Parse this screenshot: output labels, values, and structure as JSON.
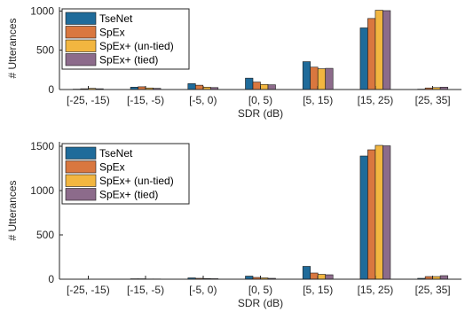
{
  "colors": {
    "series": [
      "#1f6b9a",
      "#d9773f",
      "#f2b640",
      "#8c6b8b"
    ],
    "axis": "#262626",
    "legend_border": "#262626",
    "background": "#ffffff"
  },
  "chart_data": [
    {
      "type": "bar",
      "title": "",
      "xlabel": "SDR (dB)",
      "ylabel": "# Utterances",
      "ylim": [
        0,
        1050
      ],
      "yticks": [
        0,
        500,
        1000
      ],
      "grid": false,
      "legend": "top-left",
      "categories": [
        "[-25, -15)",
        "[-15, -5)",
        "[-5, 0)",
        "[0, 5)",
        "[5, 15)",
        "[15, 25)",
        "[25, 35]"
      ],
      "series": [
        {
          "name": "TseNet",
          "values": [
            5,
            30,
            75,
            145,
            355,
            785,
            5
          ]
        },
        {
          "name": "SpEx",
          "values": [
            10,
            35,
            55,
            95,
            285,
            905,
            20
          ]
        },
        {
          "name": "SpEx+ (un-tied)",
          "values": [
            15,
            20,
            30,
            65,
            265,
            1010,
            25
          ]
        },
        {
          "name": "SpEx+ (tied)",
          "values": [
            10,
            15,
            25,
            60,
            270,
            1005,
            30
          ]
        }
      ]
    },
    {
      "type": "bar",
      "title": "",
      "xlabel": "SDR (dB)",
      "ylabel": "# Utterances",
      "ylim": [
        0,
        1550
      ],
      "yticks": [
        0,
        500,
        1000,
        1500
      ],
      "grid": false,
      "legend": "top-left",
      "categories": [
        "[-25, -15)",
        "[-15, -5)",
        "[-5, 0)",
        "[0, 5)",
        "[5, 15)",
        "[15, 25)",
        "[25, 35]"
      ],
      "series": [
        {
          "name": "TseNet",
          "values": [
            2,
            5,
            15,
            35,
            145,
            1390,
            10
          ]
        },
        {
          "name": "SpEx",
          "values": [
            2,
            5,
            10,
            20,
            70,
            1460,
            30
          ]
        },
        {
          "name": "SpEx+ (un-tied)",
          "values": [
            2,
            3,
            8,
            15,
            55,
            1510,
            30
          ]
        },
        {
          "name": "SpEx+ (tied)",
          "values": [
            2,
            3,
            6,
            10,
            50,
            1505,
            40
          ]
        }
      ]
    }
  ]
}
